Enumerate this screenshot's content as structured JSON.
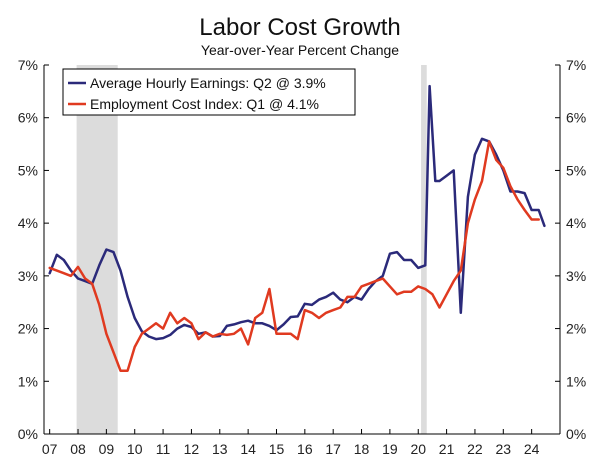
{
  "chart_data": {
    "type": "line",
    "title": "Labor Cost Growth",
    "subtitle": "Year-over-Year Percent Change",
    "xlabel": "",
    "ylabel": "",
    "x_tick_labels": [
      "07",
      "08",
      "09",
      "10",
      "11",
      "12",
      "13",
      "14",
      "15",
      "16",
      "17",
      "18",
      "19",
      "20",
      "21",
      "22",
      "23",
      "24"
    ],
    "y_tick_labels": [
      "0%",
      "1%",
      "2%",
      "3%",
      "4%",
      "5%",
      "6%",
      "7%"
    ],
    "xlim": [
      2006.8,
      2025.0
    ],
    "ylim": [
      0,
      7
    ],
    "grid": false,
    "legend_position": "top-left",
    "recessions": [
      [
        2007.95,
        2009.4
      ],
      [
        2020.1,
        2020.3
      ]
    ],
    "series": [
      {
        "name": "Average Hourly Earnings: Q2 @ 3.9%",
        "color": "#2b2a7a",
        "points": [
          [
            2007.0,
            3.05
          ],
          [
            2007.25,
            3.4
          ],
          [
            2007.5,
            3.3
          ],
          [
            2007.75,
            3.1
          ],
          [
            2008.0,
            2.95
          ],
          [
            2008.25,
            2.9
          ],
          [
            2008.5,
            2.85
          ],
          [
            2008.75,
            3.2
          ],
          [
            2009.0,
            3.5
          ],
          [
            2009.25,
            3.45
          ],
          [
            2009.5,
            3.1
          ],
          [
            2009.75,
            2.6
          ],
          [
            2010.0,
            2.2
          ],
          [
            2010.25,
            1.95
          ],
          [
            2010.5,
            1.85
          ],
          [
            2010.75,
            1.8
          ],
          [
            2011.0,
            1.82
          ],
          [
            2011.25,
            1.88
          ],
          [
            2011.5,
            2.0
          ],
          [
            2011.75,
            2.07
          ],
          [
            2012.0,
            2.03
          ],
          [
            2012.25,
            1.9
          ],
          [
            2012.5,
            1.93
          ],
          [
            2012.75,
            1.85
          ],
          [
            2013.0,
            1.86
          ],
          [
            2013.25,
            2.05
          ],
          [
            2013.5,
            2.08
          ],
          [
            2013.75,
            2.12
          ],
          [
            2014.0,
            2.15
          ],
          [
            2014.25,
            2.1
          ],
          [
            2014.5,
            2.1
          ],
          [
            2014.75,
            2.05
          ],
          [
            2015.0,
            1.97
          ],
          [
            2015.25,
            2.08
          ],
          [
            2015.5,
            2.22
          ],
          [
            2015.75,
            2.23
          ],
          [
            2016.0,
            2.47
          ],
          [
            2016.25,
            2.45
          ],
          [
            2016.5,
            2.55
          ],
          [
            2016.75,
            2.6
          ],
          [
            2017.0,
            2.68
          ],
          [
            2017.25,
            2.55
          ],
          [
            2017.5,
            2.5
          ],
          [
            2017.75,
            2.6
          ],
          [
            2018.0,
            2.55
          ],
          [
            2018.25,
            2.75
          ],
          [
            2018.5,
            2.9
          ],
          [
            2018.75,
            3.0
          ],
          [
            2019.0,
            3.42
          ],
          [
            2019.25,
            3.45
          ],
          [
            2019.5,
            3.3
          ],
          [
            2019.75,
            3.3
          ],
          [
            2020.0,
            3.15
          ],
          [
            2020.25,
            3.2
          ],
          [
            2020.4,
            6.6
          ],
          [
            2020.6,
            4.8
          ],
          [
            2020.75,
            4.8
          ],
          [
            2021.0,
            4.9
          ],
          [
            2021.25,
            5.0
          ],
          [
            2021.5,
            2.3
          ],
          [
            2021.75,
            4.5
          ],
          [
            2022.0,
            5.3
          ],
          [
            2022.25,
            5.6
          ],
          [
            2022.5,
            5.55
          ],
          [
            2022.75,
            5.3
          ],
          [
            2023.0,
            5.0
          ],
          [
            2023.25,
            4.6
          ],
          [
            2023.5,
            4.6
          ],
          [
            2023.75,
            4.57
          ],
          [
            2024.0,
            4.25
          ],
          [
            2024.25,
            4.25
          ],
          [
            2024.45,
            3.95
          ]
        ]
      },
      {
        "name": "Employment Cost Index: Q1 @ 4.1%",
        "color": "#e03a20",
        "points": [
          [
            2007.0,
            3.15
          ],
          [
            2007.25,
            3.1
          ],
          [
            2007.5,
            3.05
          ],
          [
            2007.75,
            3.0
          ],
          [
            2008.0,
            3.17
          ],
          [
            2008.25,
            2.95
          ],
          [
            2008.5,
            2.85
          ],
          [
            2008.75,
            2.45
          ],
          [
            2009.0,
            1.9
          ],
          [
            2009.25,
            1.55
          ],
          [
            2009.5,
            1.2
          ],
          [
            2009.75,
            1.2
          ],
          [
            2010.0,
            1.65
          ],
          [
            2010.25,
            1.9
          ],
          [
            2010.5,
            2.0
          ],
          [
            2010.75,
            2.1
          ],
          [
            2011.0,
            2.0
          ],
          [
            2011.25,
            2.3
          ],
          [
            2011.5,
            2.1
          ],
          [
            2011.75,
            2.2
          ],
          [
            2012.0,
            2.1
          ],
          [
            2012.25,
            1.8
          ],
          [
            2012.5,
            1.93
          ],
          [
            2012.75,
            1.85
          ],
          [
            2013.0,
            1.9
          ],
          [
            2013.25,
            1.88
          ],
          [
            2013.5,
            1.9
          ],
          [
            2013.75,
            2.0
          ],
          [
            2014.0,
            1.7
          ],
          [
            2014.25,
            2.2
          ],
          [
            2014.5,
            2.3
          ],
          [
            2014.75,
            2.75
          ],
          [
            2015.0,
            1.9
          ],
          [
            2015.25,
            1.9
          ],
          [
            2015.5,
            1.9
          ],
          [
            2015.75,
            1.8
          ],
          [
            2016.0,
            2.35
          ],
          [
            2016.25,
            2.3
          ],
          [
            2016.5,
            2.2
          ],
          [
            2016.75,
            2.3
          ],
          [
            2017.0,
            2.35
          ],
          [
            2017.25,
            2.4
          ],
          [
            2017.5,
            2.6
          ],
          [
            2017.75,
            2.6
          ],
          [
            2018.0,
            2.8
          ],
          [
            2018.25,
            2.85
          ],
          [
            2018.5,
            2.9
          ],
          [
            2018.75,
            2.95
          ],
          [
            2019.0,
            2.8
          ],
          [
            2019.25,
            2.65
          ],
          [
            2019.5,
            2.7
          ],
          [
            2019.75,
            2.7
          ],
          [
            2020.0,
            2.8
          ],
          [
            2020.25,
            2.75
          ],
          [
            2020.5,
            2.65
          ],
          [
            2020.75,
            2.4
          ],
          [
            2021.0,
            2.65
          ],
          [
            2021.25,
            2.9
          ],
          [
            2021.5,
            3.1
          ],
          [
            2021.75,
            4.0
          ],
          [
            2022.0,
            4.45
          ],
          [
            2022.25,
            4.8
          ],
          [
            2022.5,
            5.55
          ],
          [
            2022.75,
            5.2
          ],
          [
            2023.0,
            5.05
          ],
          [
            2023.25,
            4.7
          ],
          [
            2023.5,
            4.45
          ],
          [
            2023.75,
            4.25
          ],
          [
            2024.0,
            4.07
          ],
          [
            2024.25,
            4.07
          ]
        ]
      }
    ]
  }
}
